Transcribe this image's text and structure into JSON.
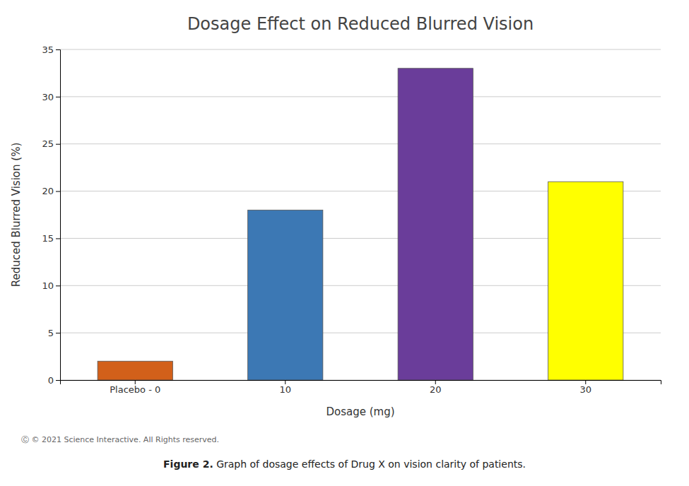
{
  "chart_data": {
    "type": "bar",
    "title": "Dosage Effect on Reduced Blurred Vision",
    "xlabel": "Dosage (mg)",
    "ylabel": "Reduced Blurred Vision (%)",
    "categories": [
      "Placebo - 0",
      "10",
      "20",
      "30"
    ],
    "values": [
      2,
      18,
      33,
      21
    ],
    "colors": [
      "#d2601a",
      "#3c78b4",
      "#6a3d9a",
      "#ffff00"
    ],
    "ylim": [
      0,
      35
    ],
    "yticks": [
      0,
      5,
      10,
      15,
      20,
      25,
      30,
      35
    ],
    "grid": true,
    "copyright": "Ⓒ © 2021 Science Interactive. All Rights reserved.",
    "caption": {
      "bold": "Figure 2.",
      "text": " Graph of dosage effects of Drug X on vision clarity of patients."
    }
  }
}
